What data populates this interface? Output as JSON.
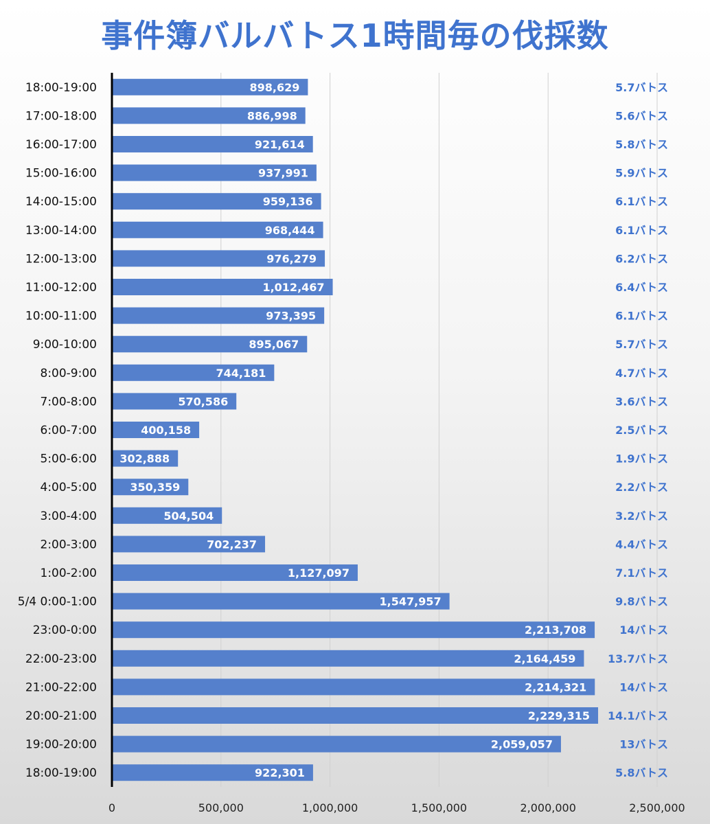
{
  "chart_data": {
    "type": "bar",
    "orientation": "horizontal",
    "title": "事件簿バルバトス1時間毎の伐採数",
    "categories": [
      "18:00-19:00",
      "17:00-18:00",
      "16:00-17:00",
      "15:00-16:00",
      "14:00-15:00",
      "13:00-14:00",
      "12:00-13:00",
      "11:00-12:00",
      "10:00-11:00",
      "9:00-10:00",
      "8:00-9:00",
      "7:00-8:00",
      "6:00-7:00",
      "5:00-6:00",
      "4:00-5:00",
      "3:00-4:00",
      "2:00-3:00",
      "1:00-2:00",
      "5/4 0:00-1:00",
      "23:00-0:00",
      "22:00-23:00",
      "21:00-22:00",
      "20:00-21:00",
      "19:00-20:00",
      "18:00-19:00"
    ],
    "values": [
      898629,
      886998,
      921614,
      937991,
      959136,
      968444,
      976279,
      1012467,
      973395,
      895067,
      744181,
      570586,
      400158,
      302888,
      350359,
      504504,
      702237,
      1127097,
      1547957,
      2213708,
      2164459,
      2214321,
      2229315,
      2059057,
      922301
    ],
    "value_labels": [
      "898,629",
      "886,998",
      "921,614",
      "937,991",
      "959,136",
      "968,444",
      "976,279",
      "1,012,467",
      "973,395",
      "895,067",
      "744,181",
      "570,586",
      "400,158",
      "302,888",
      "350,359",
      "504,504",
      "702,237",
      "1,127,097",
      "1,547,957",
      "2,213,708",
      "2,164,459",
      "2,214,321",
      "2,229,315",
      "2,059,057",
      "922,301"
    ],
    "right_labels": [
      "5.7バトス",
      "5.6バトス",
      "5.8バトス",
      "5.9バトス",
      "6.1バトス",
      "6.1バトス",
      "6.2バトス",
      "6.4バトス",
      "6.1バトス",
      "5.7バトス",
      "4.7バトス",
      "3.6バトス",
      "2.5バトス",
      "1.9バトス",
      "2.2バトス",
      "3.2バトス",
      "4.4バトス",
      "7.1バトス",
      "9.8バトス",
      "14バトス",
      "13.7バトス",
      "14バトス",
      "14.1バトス",
      "13バトス",
      "5.8バトス"
    ],
    "xlim": [
      0,
      2500000
    ],
    "xticks": [
      0,
      500000,
      1000000,
      1500000,
      2000000,
      2500000
    ],
    "xtick_labels": [
      "0",
      "500,000",
      "1,000,000",
      "1,500,000",
      "2,000,000",
      "2,500,000"
    ],
    "grid": true,
    "colors": {
      "bar": "#5580cc",
      "title": "#3f73ce",
      "right_label": "#3f73ce",
      "value_label": "#ffffff"
    }
  }
}
